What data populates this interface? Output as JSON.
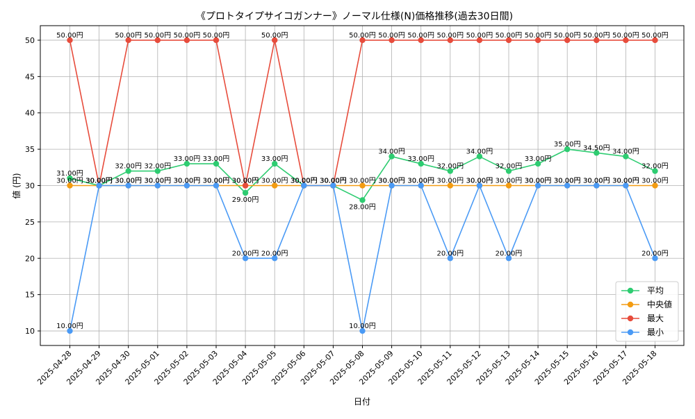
{
  "chart_data": {
    "type": "line",
    "title": "《プロトタイプサイコガンナー》ノーマル仕様(N)価格推移(過去30日間)",
    "xlabel": "日付",
    "ylabel": "値 (円)",
    "ylim": [
      8,
      52
    ],
    "yticks": [
      10,
      15,
      20,
      25,
      30,
      35,
      40,
      45,
      50
    ],
    "grid": true,
    "legend_position": "bottom-right",
    "value_suffix": "円",
    "categories": [
      "2025-04-28",
      "2025-04-29",
      "2025-04-30",
      "2025-05-01",
      "2025-05-02",
      "2025-05-03",
      "2025-05-04",
      "2025-05-05",
      "2025-05-06",
      "2025-05-07",
      "2025-05-08",
      "2025-05-09",
      "2025-05-10",
      "2025-05-11",
      "2025-05-12",
      "2025-05-13",
      "2025-05-14",
      "2025-05-15",
      "2025-05-16",
      "2025-05-17",
      "2025-05-18"
    ],
    "series": [
      {
        "name": "平均",
        "color": "#2ecc71",
        "values": [
          31,
          30,
          32,
          32,
          33,
          33,
          29,
          33,
          30,
          30,
          28,
          34,
          33,
          32,
          34,
          32,
          33,
          35,
          34.5,
          34,
          32
        ]
      },
      {
        "name": "中央値",
        "color": "#f39c12",
        "values": [
          30,
          30,
          30,
          30,
          30,
          30,
          30,
          30,
          30,
          30,
          30,
          30,
          30,
          30,
          30,
          30,
          30,
          30,
          30,
          30,
          30
        ]
      },
      {
        "name": "最大",
        "color": "#e74c3c",
        "values": [
          50,
          30,
          50,
          50,
          50,
          50,
          30,
          50,
          30,
          30,
          50,
          50,
          50,
          50,
          50,
          50,
          50,
          50,
          50,
          50,
          50
        ]
      },
      {
        "name": "最小",
        "color": "#4a9af5",
        "values": [
          10,
          30,
          30,
          30,
          30,
          30,
          20,
          20,
          30,
          30,
          10,
          30,
          30,
          20,
          30,
          20,
          30,
          30,
          30,
          30,
          20
        ]
      }
    ]
  }
}
